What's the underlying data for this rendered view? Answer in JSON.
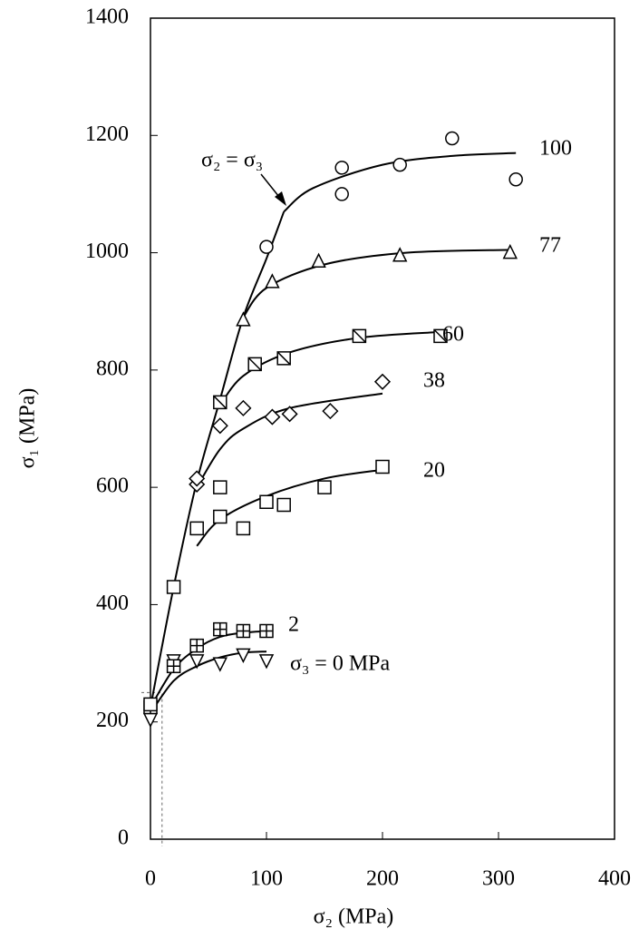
{
  "chart_data": {
    "type": "scatter",
    "xlabel": "σ₂ (MPa)",
    "ylabel": "σ₁ (MPa)",
    "xlim": [
      0,
      400
    ],
    "ylim": [
      0,
      1400
    ],
    "xticks": [
      0,
      100,
      200,
      300,
      400
    ],
    "yticks": [
      0,
      200,
      400,
      600,
      800,
      1000,
      1200,
      1400
    ],
    "color": "#000000",
    "annotation": "σ₂ = σ₃",
    "envelope": {
      "x": [
        0,
        20,
        40,
        60,
        80,
        100,
        115
      ],
      "y": [
        225,
        430,
        610,
        750,
        890,
        990,
        1070
      ]
    },
    "guide": {
      "x": 10,
      "y": 250
    },
    "series": [
      {
        "name": "σ₃ = 0 MPa",
        "marker": "triangle-down",
        "x": [
          0,
          20,
          40,
          60,
          80,
          100
        ],
        "y": [
          205,
          305,
          305,
          300,
          315,
          305
        ],
        "fit_x": [
          0,
          20,
          40,
          60,
          80,
          100
        ],
        "fit_y": [
          215,
          270,
          295,
          310,
          318,
          320
        ]
      },
      {
        "name": "2",
        "marker": "square-plus",
        "x": [
          0,
          20,
          40,
          60,
          80,
          100
        ],
        "y": [
          225,
          295,
          330,
          358,
          355,
          355
        ],
        "fit_x": [
          0,
          20,
          40,
          60,
          80,
          100
        ],
        "fit_y": [
          225,
          290,
          325,
          345,
          352,
          355
        ]
      },
      {
        "name": "20",
        "marker": "square",
        "x": [
          0,
          20,
          40,
          60,
          60,
          80,
          100,
          115,
          150,
          200
        ],
        "y": [
          230,
          430,
          530,
          600,
          550,
          530,
          575,
          570,
          600,
          635
        ],
        "fit_x": [
          40,
          60,
          100,
          150,
          200
        ],
        "fit_y": [
          500,
          545,
          585,
          615,
          630
        ]
      },
      {
        "name": "38",
        "marker": "diamond",
        "x": [
          40,
          40,
          60,
          80,
          105,
          120,
          155,
          200
        ],
        "y": [
          605,
          615,
          705,
          735,
          720,
          725,
          730,
          780
        ],
        "fit_x": [
          40,
          60,
          80,
          120,
          200
        ],
        "fit_y": [
          600,
          665,
          700,
          735,
          760
        ]
      },
      {
        "name": "60",
        "marker": "square-x",
        "x": [
          60,
          90,
          115,
          180,
          250
        ],
        "y": [
          745,
          810,
          820,
          858,
          858
        ],
        "fit_x": [
          60,
          80,
          120,
          180,
          250
        ],
        "fit_y": [
          740,
          790,
          830,
          855,
          865
        ]
      },
      {
        "name": "77",
        "marker": "triangle-up",
        "x": [
          80,
          105,
          145,
          215,
          310
        ],
        "y": [
          885,
          950,
          985,
          995,
          1000
        ],
        "fit_x": [
          80,
          100,
          150,
          220,
          310
        ],
        "fit_y": [
          890,
          940,
          980,
          1000,
          1005
        ]
      },
      {
        "name": "100",
        "marker": "circle",
        "x": [
          100,
          165,
          165,
          215,
          260,
          315
        ],
        "y": [
          1010,
          1100,
          1145,
          1150,
          1195,
          1125
        ],
        "fit_x": [
          115,
          140,
          200,
          260,
          315
        ],
        "fit_y": [
          1070,
          1110,
          1150,
          1165,
          1170
        ]
      }
    ]
  }
}
